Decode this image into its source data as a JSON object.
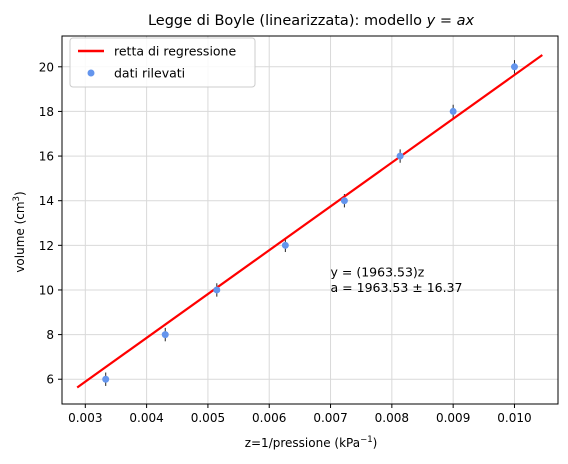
{
  "chart_data": {
    "type": "scatter",
    "title": "Legge di Boyle (linearizzata): modello ",
    "title_math": "y = ax",
    "xlabel": "z=1/pressione (kPa",
    "xlabel_sup": "−1",
    "xlabel_end": ")",
    "ylabel": "volume (cm",
    "ylabel_sup": "3",
    "ylabel_end": ")",
    "xlim": [
      0.00262,
      0.01071
    ],
    "ylim": [
      4.89,
      21.38
    ],
    "x_ticks": [
      0.003,
      0.004,
      0.005,
      0.006,
      0.007,
      0.008,
      0.009,
      0.01
    ],
    "x_tick_labels": [
      "0.003",
      "0.004",
      "0.005",
      "0.006",
      "0.007",
      "0.008",
      "0.009",
      "0.010"
    ],
    "y_ticks": [
      6,
      8,
      10,
      12,
      14,
      16,
      18,
      20
    ],
    "y_tick_labels": [
      "6",
      "8",
      "10",
      "12",
      "14",
      "16",
      "18",
      "20"
    ],
    "grid": true,
    "legend_position": "top-left",
    "series": [
      {
        "name": "dati rilevati",
        "kind": "points",
        "color": "#6495ed",
        "x": [
          0.003333,
          0.004304,
          0.005145,
          0.006263,
          0.007226,
          0.008135,
          0.009,
          0.01
        ],
        "y": [
          6,
          8,
          10,
          12,
          14,
          16,
          18,
          20
        ],
        "yerr": [
          0.3,
          0.3,
          0.3,
          0.3,
          0.3,
          0.3,
          0.3,
          0.3
        ]
      },
      {
        "name": "retta di regressione",
        "kind": "line",
        "color": "#ff0000",
        "x": [
          0.002868,
          0.010454
        ],
        "y": [
          5.631,
          20.527
        ]
      }
    ],
    "annotation": {
      "line1": "y = (1963.53)z",
      "line2": "a = 1963.53 ±  16.37",
      "x": 0.007,
      "y_line1": 10.7,
      "y_line2": 10.0,
      "color": "#ff0000"
    }
  }
}
